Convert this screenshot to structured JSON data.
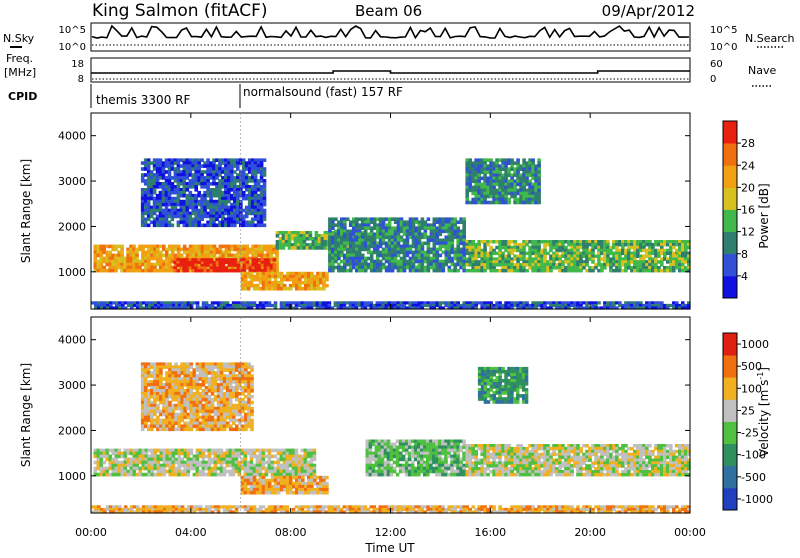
{
  "header": {
    "station": "King Salmon (fitACF)",
    "beam": "Beam 06",
    "date": "09/Apr/2012"
  },
  "top_panels": {
    "nsky_label": "N.Sky",
    "nsky_ticks": [
      "10^5",
      "10^0"
    ],
    "nsearch_label": "N.Search",
    "nsearch_ticks": [
      "10^5",
      "10^0"
    ],
    "freq_label_1": "Freq.",
    "freq_label_2": "[MHz]",
    "freq_ticks": [
      "18",
      "8"
    ],
    "nave_label": "Nave",
    "nave_ticks": [
      "60",
      "0"
    ],
    "cpid_label": "CPID",
    "cpid_entries": [
      {
        "text": "themis 3300 RF",
        "start_hour": 0
      },
      {
        "text": "normalsound (fast) 157 RF",
        "start_hour": 6.0
      }
    ]
  },
  "chart_data": [
    {
      "type": "heatmap",
      "name": "power",
      "xlabel": "Time UT",
      "ylabel": "Slant Range [km]",
      "xlim": [
        0,
        24
      ],
      "ylim": [
        180,
        4500
      ],
      "x_ticks": [
        "00:00",
        "04:00",
        "08:00",
        "12:00",
        "16:00",
        "20:00",
        "00:00"
      ],
      "y_ticks": [
        "1000",
        "2000",
        "3000",
        "4000"
      ],
      "colorbar": {
        "label": "Power [dB]",
        "ticks": [
          "4",
          "8",
          "12",
          "16",
          "20",
          "24",
          "28"
        ],
        "colors": [
          "#1010e0",
          "#3050d8",
          "#2f7f6f",
          "#41b84a",
          "#d8c020",
          "#f0a010",
          "#f07010",
          "#e82010"
        ]
      },
      "regions": [
        {
          "t": [
            0.1,
            7.5
          ],
          "range": [
            1000,
            1600
          ],
          "level": 5
        },
        {
          "t": [
            3.3,
            7.4
          ],
          "range": [
            1000,
            1300
          ],
          "level": 7
        },
        {
          "t": [
            7.4,
            11.0
          ],
          "range": [
            1500,
            1900
          ],
          "level": 3
        },
        {
          "t": [
            6.0,
            9.5
          ],
          "range": [
            600,
            1000
          ],
          "level": 5
        },
        {
          "t": [
            9.5,
            15.0
          ],
          "range": [
            1000,
            2200
          ],
          "level": 2
        },
        {
          "t": [
            15.0,
            24.0
          ],
          "range": [
            1000,
            1700
          ],
          "level": 3
        },
        {
          "t": [
            2.0,
            7.0
          ],
          "range": [
            2000,
            3500
          ],
          "level": 1
        },
        {
          "t": [
            15.0,
            18.0
          ],
          "range": [
            2500,
            3500
          ],
          "level": 2
        },
        {
          "t": [
            0.0,
            24.0
          ],
          "range": [
            180,
            350
          ],
          "level": 1
        }
      ]
    },
    {
      "type": "heatmap",
      "name": "velocity",
      "xlabel": "Time UT",
      "ylabel": "Slant Range [km]",
      "xlim": [
        0,
        24
      ],
      "ylim": [
        180,
        4500
      ],
      "x_ticks": [
        "00:00",
        "04:00",
        "08:00",
        "12:00",
        "16:00",
        "20:00",
        "00:00"
      ],
      "y_ticks": [
        "1000",
        "2000",
        "3000",
        "4000"
      ],
      "colorbar": {
        "label": "Velocity [m s",
        "label_superscript": "-1",
        "ticks": [
          "1000",
          "500",
          "100",
          "25",
          "-25",
          "-100",
          "-500",
          "-1000"
        ],
        "colors": [
          "#2040c0",
          "#3070a0",
          "#2f8f5f",
          "#50c040",
          "#c0c0c0",
          "#f0b020",
          "#f07010",
          "#e02010"
        ]
      },
      "regions": [
        {
          "t": [
            0.1,
            9.0
          ],
          "range": [
            1000,
            1600
          ],
          "level": 4
        },
        {
          "t": [
            6.0,
            9.5
          ],
          "range": [
            600,
            1000
          ],
          "level": 5
        },
        {
          "t": [
            11.0,
            15.0
          ],
          "range": [
            1000,
            1800
          ],
          "level": 3
        },
        {
          "t": [
            15.0,
            24.0
          ],
          "range": [
            1000,
            1700
          ],
          "level": 4
        },
        {
          "t": [
            2.0,
            6.5
          ],
          "range": [
            2000,
            3500
          ],
          "level": 5
        },
        {
          "t": [
            15.5,
            17.5
          ],
          "range": [
            2600,
            3400
          ],
          "level": 2
        },
        {
          "t": [
            0.0,
            24.0
          ],
          "range": [
            180,
            350
          ],
          "level": 5
        }
      ]
    }
  ]
}
